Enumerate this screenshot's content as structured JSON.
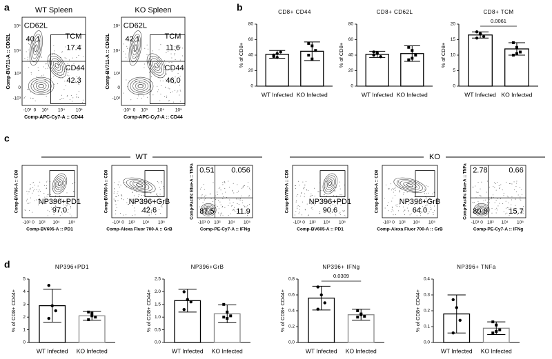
{
  "panel_labels": [
    "a",
    "b",
    "c",
    "d"
  ],
  "flow_ticks": [
    "-10³",
    "0",
    "10³",
    "10⁴",
    "10⁵"
  ],
  "panel_a": {
    "x_label": "Comp-APC-Cy7-A :: CD44",
    "y_label": "Comp-BV711-A :: CD62L",
    "plots": [
      {
        "title": "WT Spleen",
        "gates": [
          "CD62L",
          "40.1",
          "TCM",
          "17.4",
          "CD44",
          "42.3"
        ]
      },
      {
        "title": "KO Spleen",
        "gates": [
          "CD62L",
          "42.1",
          "TCM",
          "11.6",
          "CD44",
          "46.0"
        ]
      }
    ]
  },
  "panel_c": {
    "groups": [
      "WT",
      "KO"
    ],
    "plots": [
      {
        "y_label": "Comp-BV786-A :: CD8",
        "x_label": "Comp-BV605-A :: PD1",
        "gates": [
          "NP396+PD1",
          "97.0"
        ]
      },
      {
        "y_label": "Comp-BV786-A :: CD8",
        "x_label": "Comp-Alexa Fluor 700-A :: GrB",
        "gates": [
          "NP396+GrB",
          "42.6"
        ]
      },
      {
        "y_label": "Comp-Pacific Blue-A :: TNFa",
        "x_label": "Comp-PE-Cy7-A :: IFNg",
        "gates": [
          "0.51",
          "0.056",
          "87.5",
          "11.9"
        ]
      },
      {
        "y_label": "Comp-BV786-A :: CD8",
        "x_label": "Comp-BV605-A :: PD1",
        "gates": [
          "NP396+PD1",
          "90.6"
        ]
      },
      {
        "y_label": "Comp-BV786-A :: CD8",
        "x_label": "Comp-Alexa Fluor 700-A :: GrB",
        "gates": [
          "NP396+GrB",
          "64.0"
        ]
      },
      {
        "y_label": "Comp-Pacific Blue-A :: TNFa",
        "x_label": "Comp-PE-Cy7-A :: IFNg",
        "gates": [
          "2.78",
          "0.66",
          "80.8",
          "15.7"
        ]
      }
    ]
  },
  "chart_data": [
    {
      "type": "bar",
      "title": "CD8+ CD44",
      "ylabel": "% of CD8+",
      "categories": [
        "WT Infected",
        "KO Infected"
      ],
      "values": [
        41,
        45
      ],
      "errors": [
        5,
        12
      ],
      "points": [
        [
          38,
          42,
          44,
          40,
          37
        ],
        [
          55,
          52,
          46,
          40,
          35
        ]
      ],
      "edge_colors": [
        "#000000",
        "#000000"
      ],
      "markers": [
        "circle",
        "square"
      ],
      "ylim": [
        0,
        80
      ],
      "yticks": [
        0,
        20,
        40,
        60,
        80
      ]
    },
    {
      "type": "bar",
      "title": "CD8+ CD62L",
      "ylabel": "% of CD8+",
      "categories": [
        "WT Infected",
        "KO Infected"
      ],
      "values": [
        41,
        42
      ],
      "errors": [
        4,
        10
      ],
      "points": [
        [
          44,
          42,
          38,
          40,
          43
        ],
        [
          50,
          46,
          40,
          34,
          36
        ]
      ],
      "edge_colors": [
        "#000000",
        "#000000"
      ],
      "markers": [
        "circle",
        "square"
      ],
      "ylim": [
        0,
        80
      ],
      "yticks": [
        0,
        20,
        40,
        60,
        80
      ]
    },
    {
      "type": "bar",
      "title": "CD8+ TCM",
      "ylabel": "% of CD8+",
      "categories": [
        "WT Infected",
        "KO Infected"
      ],
      "values": [
        16.5,
        12
      ],
      "errors": [
        1,
        2
      ],
      "points": [
        [
          17.5,
          16.8,
          16,
          15.5,
          17
        ],
        [
          14,
          12.5,
          11,
          10,
          10.5
        ]
      ],
      "edge_colors": [
        "#000000",
        "#000000"
      ],
      "markers": [
        "circle",
        "square"
      ],
      "ylim": [
        0,
        20
      ],
      "yticks": [
        0,
        5,
        10,
        15,
        20
      ],
      "annotation": "0.0061"
    },
    {
      "type": "bar",
      "title": "NP396+PD1",
      "ylabel": "% of CD8+ CD44+",
      "categories": [
        "WT Infected",
        "KO Infected"
      ],
      "values": [
        2.9,
        2.1
      ],
      "errors": [
        1.3,
        0.35
      ],
      "points": [
        [
          4.5,
          2.9,
          2.5,
          1.9
        ],
        [
          2.4,
          2.3,
          2.0,
          1.8,
          2.1
        ]
      ],
      "edge_colors": [
        "#000000",
        "#888888"
      ],
      "markers": [
        "circle",
        "square"
      ],
      "ylim": [
        0,
        5
      ],
      "yticks": [
        0,
        1,
        2,
        3,
        4,
        5
      ]
    },
    {
      "type": "bar",
      "title": "NP396+GrB",
      "ylabel": "% of CD8+ CD44+",
      "categories": [
        "WT Infected",
        "KO Infected"
      ],
      "values": [
        1.65,
        1.13
      ],
      "errors": [
        0.45,
        0.35
      ],
      "points": [
        [
          2.0,
          1.7,
          1.6,
          1.3
        ],
        [
          1.5,
          1.2,
          1.05,
          1.0,
          0.95
        ]
      ],
      "edge_colors": [
        "#000000",
        "#888888"
      ],
      "markers": [
        "circle",
        "square"
      ],
      "ylim": [
        0,
        2.5
      ],
      "yticks": [
        {
          "value": 0,
          "label": "0.0"
        },
        0.5,
        {
          "value": 1,
          "label": "1.0"
        },
        1.5,
        {
          "value": 2,
          "label": "2.0"
        },
        2.5
      ]
    },
    {
      "type": "bar",
      "title": "NP396+ IFNg",
      "ylabel": "% of CD8+ CD44+",
      "categories": [
        "WT Infected",
        "KO Infected"
      ],
      "values": [
        0.56,
        0.35
      ],
      "errors": [
        0.15,
        0.07
      ],
      "points": [
        [
          0.7,
          0.6,
          0.5,
          0.42
        ],
        [
          0.4,
          0.36,
          0.33,
          0.32,
          0.35
        ]
      ],
      "edge_colors": [
        "#000000",
        "#888888"
      ],
      "markers": [
        "circle",
        "square"
      ],
      "ylim": [
        0,
        0.8
      ],
      "yticks": [
        {
          "value": 0,
          "label": "0.0"
        },
        0.2,
        0.4,
        0.6,
        0.8
      ],
      "annotation": "0.0309"
    },
    {
      "type": "bar",
      "title": "NP396+ TNFa",
      "ylabel": "% of CD8+ CD44+",
      "categories": [
        "WT Infected",
        "KO Infected"
      ],
      "values": [
        0.18,
        0.09
      ],
      "errors": [
        0.12,
        0.04
      ],
      "points": [
        [
          0.27,
          0.22,
          0.14,
          0.06
        ],
        [
          0.13,
          0.11,
          0.08,
          0.06,
          0.07
        ]
      ],
      "edge_colors": [
        "#000000",
        "#888888"
      ],
      "markers": [
        "circle",
        "square"
      ],
      "ylim": [
        0,
        0.4
      ],
      "yticks": [
        {
          "value": 0,
          "label": "0.0"
        },
        0.1,
        0.2,
        0.3,
        0.4
      ]
    }
  ]
}
